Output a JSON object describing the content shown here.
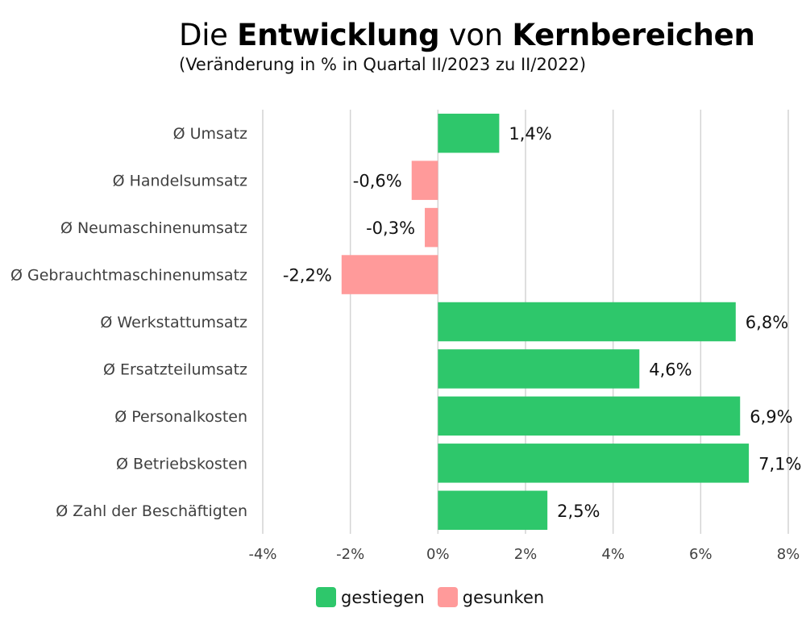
{
  "title": {
    "part1": "Die ",
    "part2": "Entwicklung",
    "part3": " von ",
    "part4": "Kernbereichen"
  },
  "subtitle": "(Veränderung in % in Quartal II/2023 zu II/2022)",
  "legend": {
    "increase_label": "gestiegen",
    "decrease_label": "gesunken"
  },
  "colors": {
    "increase": "#2ec76b",
    "decrease": "#ff9a9a",
    "grid": "#d4d4d4"
  },
  "chart_data": {
    "type": "bar",
    "orientation": "horizontal",
    "categories": [
      "Ø Umsatz",
      "Ø Handelsumsatz",
      "Ø Neumaschinenumsatz",
      "Ø Gebrauchtmaschinenumsatz",
      "Ø Werkstattumsatz",
      "Ø Ersatzteilumsatz",
      "Ø Personalkosten",
      "Ø Betriebskosten",
      "Ø Zahl der Beschäftigten"
    ],
    "values": [
      1.4,
      -0.6,
      -0.3,
      -2.2,
      6.8,
      4.6,
      6.9,
      7.1,
      2.5
    ],
    "data_labels": [
      "1,4%",
      "-0,6%",
      "-0,3%",
      "-2,2%",
      "6,8%",
      "4,6%",
      "6,9%",
      "7,1%",
      "2,5%"
    ],
    "xlim": [
      -4,
      8
    ],
    "x_ticks": [
      -4,
      -2,
      0,
      2,
      4,
      6,
      8
    ],
    "x_tick_labels": [
      "-4%",
      "-2%",
      "0%",
      "2%",
      "4%",
      "6%",
      "8%"
    ],
    "grid": true,
    "legend_position": "bottom"
  }
}
